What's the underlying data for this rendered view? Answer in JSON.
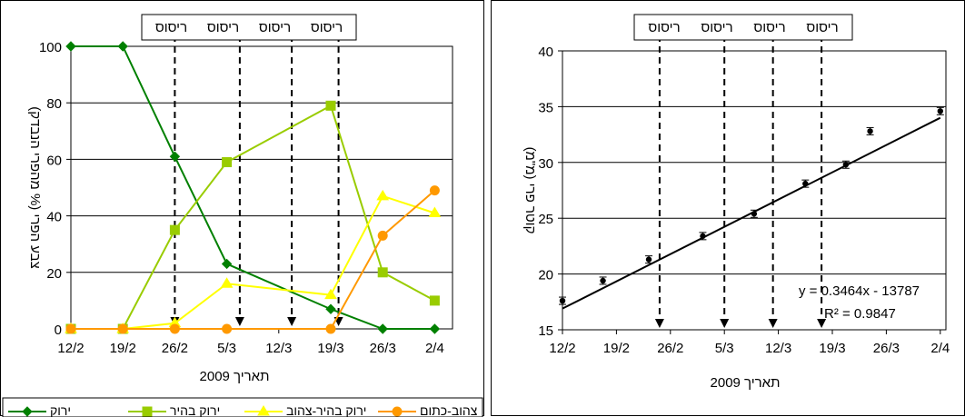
{
  "chart_data": [
    {
      "type": "line",
      "treatment_box": [
        "ריסוס",
        "ריסוס",
        "ריסוס",
        "ריסוס"
      ],
      "treatment_dates": [
        "26/2",
        "5/3",
        "12/3",
        "19/3"
      ],
      "categories": [
        "12/2",
        "19/2",
        "26/2",
        "5/3",
        "12/3",
        "19/3",
        "26/3",
        "2/4"
      ],
      "xlabel": "תאריך 2009",
      "ylabel": "צבע הפרי (% מהפרי הנבדק)",
      "ylim": [
        0,
        100
      ],
      "yticks": [
        0,
        20,
        40,
        60,
        80,
        100
      ],
      "grid": true,
      "legend_position": "bottom",
      "series": [
        {
          "name": "ירוק",
          "color": "#008000",
          "marker": "diamond",
          "points": [
            [
              0,
              100
            ],
            [
              1,
              100
            ],
            [
              2,
              61
            ],
            [
              3,
              23
            ],
            [
              5,
              7
            ],
            [
              6,
              0
            ],
            [
              7,
              0
            ]
          ]
        },
        {
          "name": "ירוק בהיר",
          "color": "#99CC00",
          "marker": "square",
          "points": [
            [
              0,
              0
            ],
            [
              1,
              0
            ],
            [
              2,
              35
            ],
            [
              3,
              59
            ],
            [
              5,
              79
            ],
            [
              6,
              20
            ],
            [
              7,
              10
            ]
          ]
        },
        {
          "name": "ירוק בהיר-צהוב",
          "color": "#FFFF00",
          "marker": "triangle",
          "points": [
            [
              0,
              0
            ],
            [
              1,
              0
            ],
            [
              2,
              2
            ],
            [
              3,
              16
            ],
            [
              5,
              12
            ],
            [
              6,
              47
            ],
            [
              7,
              41
            ]
          ]
        },
        {
          "name": "צהוב-כתום",
          "color": "#FF9900",
          "marker": "circle",
          "points": [
            [
              0,
              0
            ],
            [
              1,
              0
            ],
            [
              2,
              0
            ],
            [
              3,
              0
            ],
            [
              5,
              0
            ],
            [
              6,
              33
            ],
            [
              7,
              49
            ]
          ]
        }
      ]
    },
    {
      "type": "scatter",
      "treatment_box": [
        "ריסוס",
        "ריסוס",
        "ריסוס",
        "ריסוס"
      ],
      "treatment_dates": [
        "26/2",
        "5/3",
        "12/3",
        "19/3"
      ],
      "categories": [
        "12/2",
        "19/2",
        "26/2",
        "5/3",
        "12/3",
        "19/3",
        "26/3",
        "2/4"
      ],
      "xlabel": "תאריך 2009",
      "ylabel": "קוטר פרי (מ\"מ)",
      "ylim": [
        15,
        40
      ],
      "yticks": [
        15,
        20,
        25,
        30,
        35,
        40
      ],
      "grid": true,
      "points": [
        [
          0,
          17.6
        ],
        [
          0.75,
          19.4
        ],
        [
          1.6,
          21.3
        ],
        [
          2.6,
          23.4
        ],
        [
          3.55,
          25.4
        ],
        [
          4.5,
          28.1
        ],
        [
          5.25,
          29.8
        ],
        [
          5.7,
          32.8
        ],
        [
          7,
          34.6
        ]
      ],
      "trendline": {
        "equation": "y = 0.3464x - 13787",
        "r2": "R² = 0.9847",
        "start": [
          0,
          16.9
        ],
        "end": [
          7,
          34.0
        ]
      }
    }
  ]
}
